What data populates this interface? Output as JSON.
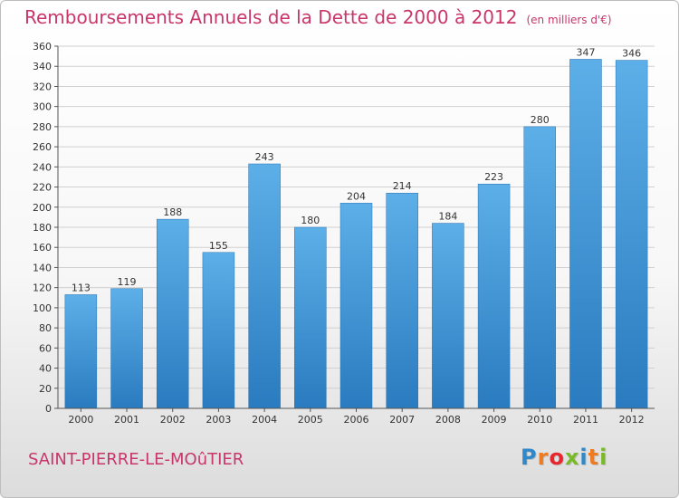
{
  "chart_data": {
    "type": "bar",
    "title": "Remboursements Annuels de la Dette de 2000 à 2012",
    "subtitle": "(en milliers d'€)",
    "categories": [
      "2000",
      "2001",
      "2002",
      "2003",
      "2004",
      "2005",
      "2006",
      "2007",
      "2008",
      "2009",
      "2010",
      "2011",
      "2012"
    ],
    "values": [
      113,
      119,
      188,
      155,
      243,
      180,
      204,
      214,
      184,
      223,
      280,
      347,
      346
    ],
    "ylim": [
      0,
      360
    ],
    "ytick_step": 20,
    "grid": true,
    "bar_color": "#3a8fd6"
  },
  "footer": {
    "town": "SAINT-PIERRE-LE-MOûTIER",
    "logo_letters": [
      "P",
      "r",
      "o",
      "x",
      "i",
      "t",
      "i"
    ],
    "logo_colors": [
      "#2f88c9",
      "#f07a1e",
      "#e8262e",
      "#7ab929",
      "#2f88c9",
      "#f07a1e",
      "#7ab929"
    ]
  }
}
